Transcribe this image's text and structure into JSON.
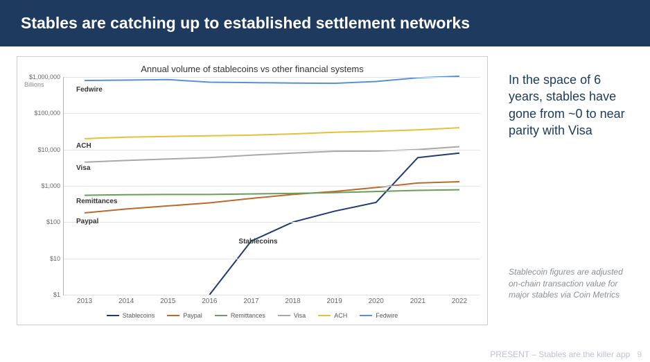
{
  "header": {
    "title": "Stables are catching up to established settlement networks",
    "bg_color": "#1e3a5f"
  },
  "sidebar": {
    "main_text": "In the space of 6 years, stables have gone from ~0 to near parity with Visa",
    "note_text": "Stablecoin figures are adjusted on-chain transaction value for major stables via Coin Metrics",
    "main_color": "#1a3a5c",
    "note_color": "#8a8f95"
  },
  "chart": {
    "title": "Annual volume of stablecoins vs other financial systems",
    "type": "line",
    "y_unit": "Billions",
    "x_categories": [
      "2013",
      "2014",
      "2015",
      "2016",
      "2017",
      "2018",
      "2019",
      "2020",
      "2021",
      "2022"
    ],
    "y_scale": "log",
    "y_min": 1,
    "y_max": 1000000,
    "y_ticks": [
      {
        "v": 1,
        "label": "$1"
      },
      {
        "v": 10,
        "label": "$10"
      },
      {
        "v": 100,
        "label": "$100"
      },
      {
        "v": 1000,
        "label": "$1,000"
      },
      {
        "v": 10000,
        "label": "$10,000"
      },
      {
        "v": 100000,
        "label": "$100,000"
      },
      {
        "v": 1000000,
        "label": "$1,000,000"
      }
    ],
    "grid_color": "#e3e3e3",
    "axis_color": "#b0b0b0",
    "background_color": "#ffffff",
    "line_width": 2,
    "series": [
      {
        "name": "Stablecoins",
        "color": "#1f3a6e",
        "values": [
          null,
          null,
          null,
          1,
          30,
          100,
          200,
          350,
          6000,
          8000
        ],
        "inline_label_x": 0.42,
        "inline_label_y": 0.74
      },
      {
        "name": "Paypal",
        "color": "#b96a2c",
        "values": [
          180,
          230,
          280,
          340,
          450,
          580,
          700,
          900,
          1200,
          1300
        ],
        "inline_label_x": 0.03,
        "inline_label_y": 0.645
      },
      {
        "name": "Remittances",
        "color": "#6a9d5a",
        "values": [
          550,
          570,
          580,
          580,
          600,
          620,
          650,
          700,
          750,
          780
        ],
        "inline_label_x": 0.03,
        "inline_label_y": 0.555
      },
      {
        "name": "Visa",
        "color": "#a8a8a8",
        "values": [
          4500,
          5000,
          5500,
          6000,
          7000,
          8000,
          9000,
          9100,
          10000,
          12000
        ],
        "inline_label_x": 0.03,
        "inline_label_y": 0.4
      },
      {
        "name": "ACH",
        "color": "#e2c23a",
        "values": [
          20000,
          22000,
          23000,
          24000,
          25000,
          27000,
          30000,
          32000,
          35000,
          40000
        ],
        "inline_label_x": 0.03,
        "inline_label_y": 0.3
      },
      {
        "name": "Fedwire",
        "color": "#5a8fd6",
        "values": [
          800000,
          820000,
          850000,
          720000,
          700000,
          680000,
          670000,
          750000,
          950000,
          1050000
        ],
        "inline_label_x": 0.03,
        "inline_label_y": 0.042
      }
    ]
  },
  "footer": {
    "text": "PRESENT – Stables are the killer app",
    "page": "9",
    "color": "#b9c3cc"
  }
}
